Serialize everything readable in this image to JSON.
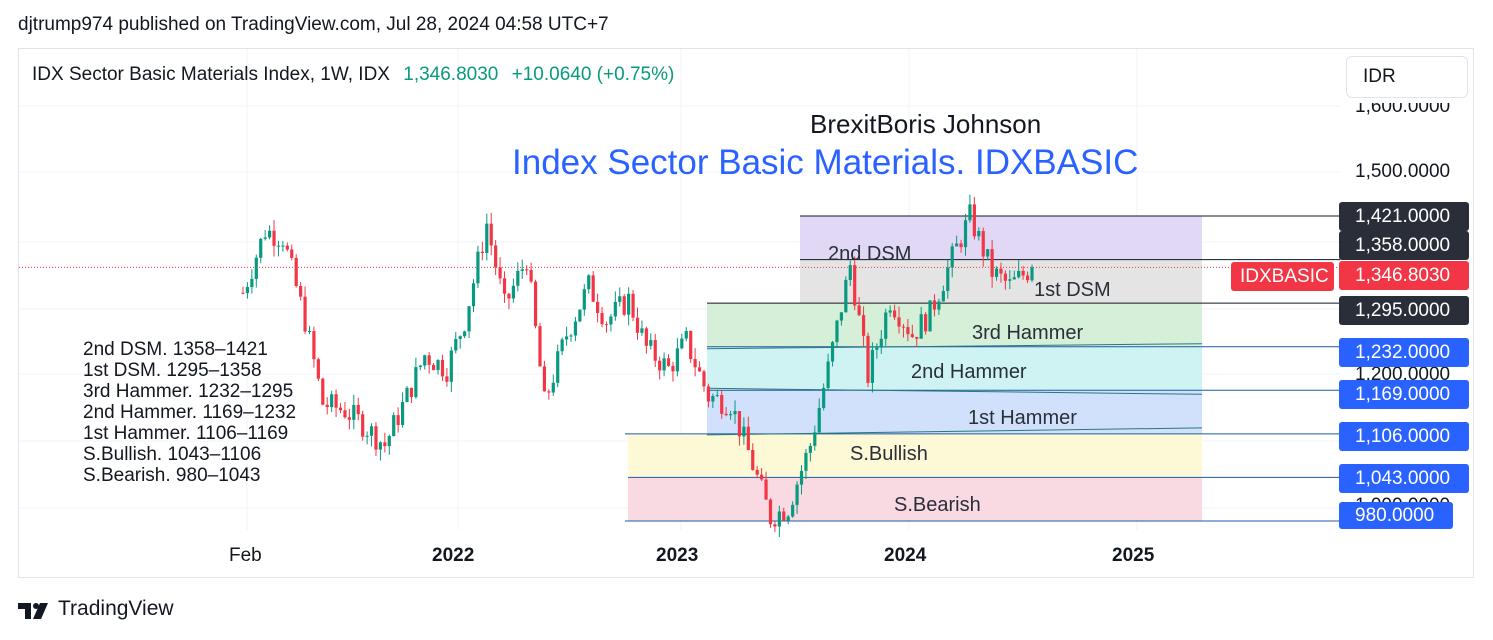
{
  "publisher_line": "djtrump974 published on TradingView.com, Jul 28, 2024 04:58 UTC+7",
  "header": {
    "symbol": "IDX Sector Basic Materials Index, 1W, IDX",
    "price": "1,346.8030",
    "change": "+10.0640 (+0.75%)"
  },
  "currency": "IDR",
  "titles": {
    "line1": "BrexitBoris Johnson",
    "line2": "Index Sector Basic Materials. IDXBASIC"
  },
  "legend_lines": [
    "2nd DSM. 1358–1421",
    "1st DSM. 1295–1358",
    "3rd Hammer. 1232–1295",
    "2nd Hammer. 1169–1232",
    "1st Hammer. 1106–1169",
    "S.Bullish. 1043–1106",
    "S.Bearish. 980–1043"
  ],
  "zones": [
    {
      "name": "2nd DSM",
      "low": 1358,
      "high": 1421,
      "color": "#e1d8f5"
    },
    {
      "name": "1st DSM",
      "low": 1295,
      "high": 1358,
      "color": "#e4e4e4"
    },
    {
      "name": "3rd Hammer",
      "low": 1232,
      "high": 1295,
      "color": "#d6efd9"
    },
    {
      "name": "2nd Hammer",
      "low": 1169,
      "high": 1232,
      "color": "#cff3f3"
    },
    {
      "name": "1st Hammer",
      "low": 1106,
      "high": 1169,
      "color": "#d2e1fb"
    },
    {
      "name": "S.Bullish",
      "low": 1043,
      "high": 1106,
      "color": "#fdf9d6"
    },
    {
      "name": "S.Bearish",
      "low": 980,
      "high": 1043,
      "color": "#f9d9e2"
    }
  ],
  "price_ticks": [
    "1,600.0000",
    "1,500.0000",
    "1,200.0000",
    "1,000.0000"
  ],
  "badges": [
    {
      "label": "1,421.0000",
      "color": "#2a2e39"
    },
    {
      "label": "1,358.0000",
      "color": "#2a2e39"
    },
    {
      "label": "1,346.8030",
      "color": "#f23645"
    },
    {
      "label": "1,295.0000",
      "color": "#2a2e39"
    },
    {
      "label": "1,232.0000",
      "color": "#2962ff"
    },
    {
      "label": "1,169.0000",
      "color": "#2962ff"
    },
    {
      "label": "1,106.0000",
      "color": "#2962ff"
    },
    {
      "label": "1,043.0000",
      "color": "#2962ff"
    },
    {
      "label": "980.0000",
      "color": "#2962ff"
    }
  ],
  "symbol_badge": "IDXBASIC",
  "x_labels": [
    "Feb",
    "2022",
    "2023",
    "2024",
    "2025"
  ],
  "brand": "TradingView",
  "chart_data": {
    "type": "candlestick",
    "title": "Index Sector Basic Materials. IDXBASIC",
    "interval": "1W",
    "last_price": 1346.803,
    "colors": {
      "up": "#089981",
      "down": "#f23645"
    },
    "points": [
      {
        "date": "2021-02",
        "close": 1310
      },
      {
        "date": "2021-02",
        "close": 1400
      },
      {
        "date": "2021-03",
        "close": 1390
      },
      {
        "date": "2021-05",
        "close": 1270
      },
      {
        "date": "2021-06",
        "close": 1150
      },
      {
        "date": "2021-08",
        "close": 1140
      },
      {
        "date": "2021-09",
        "close": 1120
      },
      {
        "date": "2021-10",
        "close": 1090
      },
      {
        "date": "2021-11",
        "close": 1160
      },
      {
        "date": "2021-12",
        "close": 1220
      },
      {
        "date": "2022-02",
        "close": 1200
      },
      {
        "date": "2022-03",
        "close": 1270
      },
      {
        "date": "2022-04",
        "close": 1410
      },
      {
        "date": "2022-05",
        "close": 1290
      },
      {
        "date": "2022-06",
        "close": 1360
      },
      {
        "date": "2022-07",
        "close": 1150
      },
      {
        "date": "2022-08",
        "close": 1250
      },
      {
        "date": "2022-09",
        "close": 1320
      },
      {
        "date": "2022-10",
        "close": 1270
      },
      {
        "date": "2022-11",
        "close": 1300
      },
      {
        "date": "2022-12",
        "close": 1230
      },
      {
        "date": "2023-01",
        "close": 1200
      },
      {
        "date": "2023-02",
        "close": 1240
      },
      {
        "date": "2023-03",
        "close": 1160
      },
      {
        "date": "2023-04",
        "close": 1150
      },
      {
        "date": "2023-05",
        "close": 1080
      },
      {
        "date": "2023-06",
        "close": 985
      },
      {
        "date": "2023-07",
        "close": 1000
      },
      {
        "date": "2023-08",
        "close": 1090
      },
      {
        "date": "2023-09",
        "close": 1200
      },
      {
        "date": "2023-10",
        "close": 1350
      },
      {
        "date": "2023-11",
        "close": 1190
      },
      {
        "date": "2023-12",
        "close": 1300
      },
      {
        "date": "2024-01",
        "close": 1250
      },
      {
        "date": "2024-02",
        "close": 1280
      },
      {
        "date": "2024-03",
        "close": 1360
      },
      {
        "date": "2024-04",
        "close": 1420
      },
      {
        "date": "2024-05",
        "close": 1340
      },
      {
        "date": "2024-06",
        "close": 1320
      },
      {
        "date": "2024-07",
        "close": 1346.8
      }
    ]
  }
}
